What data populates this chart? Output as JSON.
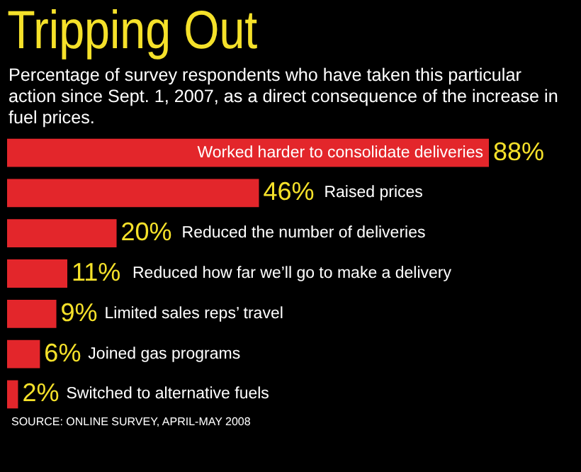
{
  "chart_data": {
    "type": "bar",
    "orientation": "horizontal",
    "title": "Tripping Out",
    "subtitle": "Percentage of survey respondents who have taken this particular action since Sept. 1, 2007, as a direct consequence of the increase in fuel prices.",
    "categories": [
      "Worked harder to consolidate deliveries",
      "Raised prices",
      "Reduced the number of deliveries",
      "Reduced how far we’ll go to make a delivery",
      "Limited sales reps’ travel",
      "Joined gas programs",
      "Switched to alternative fuels"
    ],
    "values": [
      88,
      46,
      20,
      11,
      9,
      6,
      2
    ],
    "value_labels": [
      "88%",
      "46%",
      "20%",
      "11%",
      "9%",
      "6%",
      "2%"
    ],
    "color": "#e3262b",
    "annotations": [
      "SOURCE: ONLINE SURVEY, APRIL-MAY 2008"
    ]
  }
}
